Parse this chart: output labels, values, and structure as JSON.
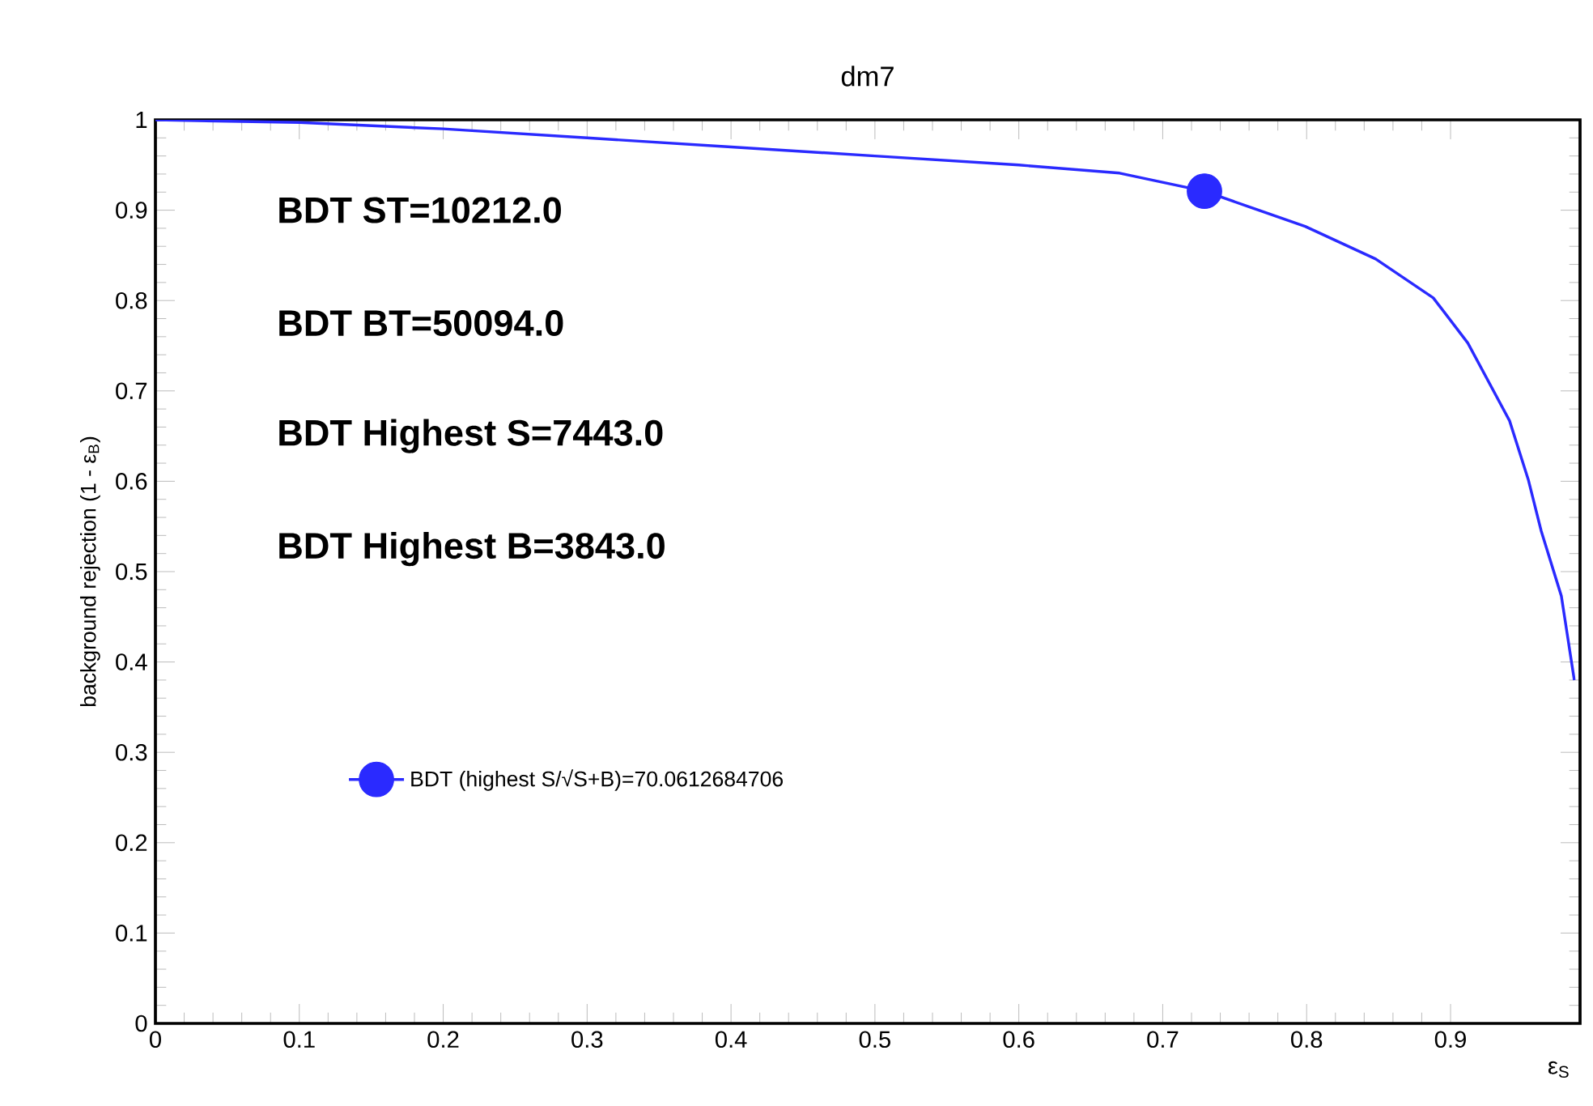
{
  "chart_data": {
    "type": "line",
    "title": "dm7",
    "xlabel": "ε$_{S}$",
    "ylabel": "background rejection (1 - ε$_{B}$)",
    "xlim": [
      0,
      0.99
    ],
    "ylim": [
      0,
      1
    ],
    "xticks": [
      0,
      0.1,
      0.2,
      0.3,
      0.4,
      0.5,
      0.6,
      0.7,
      0.8,
      0.9
    ],
    "yticks": [
      0,
      0.1,
      0.2,
      0.3,
      0.4,
      0.5,
      0.6,
      0.7,
      0.8,
      0.9,
      1
    ],
    "grid": false,
    "legend": "left",
    "series": [
      {
        "color": "#2a2aff",
        "marker": "none",
        "x": [
          0,
          0.1,
          0.2,
          0.3,
          0.4,
          0.5,
          0.6,
          0.67,
          0.729,
          0.799,
          0.848,
          0.888,
          0.912,
          0.941,
          0.954,
          0.963,
          0.977,
          0.986
        ],
        "values": [
          1,
          0.997,
          0.99,
          0.98,
          0.97,
          0.96,
          0.95,
          0.941,
          0.921,
          0.882,
          0.846,
          0.803,
          0.753,
          0.667,
          0.602,
          0.545,
          0.473,
          0.38
        ]
      },
      {
        "type": "scatter",
        "name": "BDT (highest S/√S+B)=70.0612684706",
        "color": "#2a2aff",
        "marker": "circle",
        "x": [
          0.729
        ],
        "values": [
          0.921
        ]
      }
    ],
    "annotations": [
      "BDT ST=10212.0",
      "BDT BT=50094.0",
      "BDT Highest S=7443.0",
      "BDT Highest B=3843.0"
    ]
  }
}
